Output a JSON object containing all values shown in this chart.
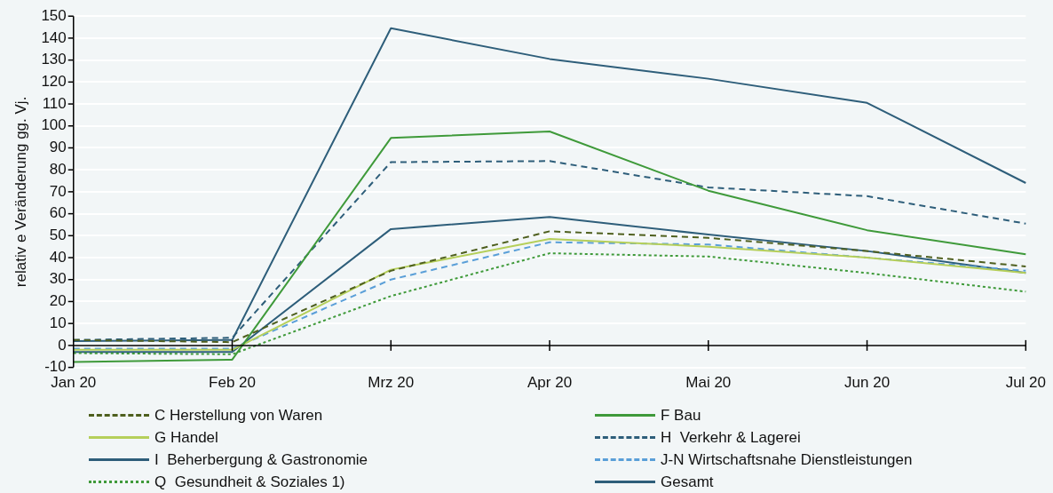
{
  "chart_data": {
    "type": "line",
    "ylabel": "relativ e Veränderung gg. Vj.",
    "categories": [
      "Jan 20",
      "Feb 20",
      "Mrz 20",
      "Apr 20",
      "Mai 20",
      "Jun 20",
      "Jul 20"
    ],
    "ylim": [
      -10,
      150
    ],
    "yticks": [
      -10,
      0,
      10,
      20,
      30,
      40,
      50,
      60,
      70,
      80,
      90,
      100,
      110,
      120,
      130,
      140,
      150
    ],
    "grid": "y",
    "legend": "bottom",
    "marker": "none",
    "series": [
      {
        "name": "C Herstellung von Waren",
        "color": "#4e5f1e",
        "line_style": "dashed",
        "values": [
          2.5,
          1.5,
          34,
          52,
          49,
          43,
          36
        ]
      },
      {
        "name": "F Bau",
        "color": "#3f9a3a",
        "line_style": "solid",
        "values": [
          -7.5,
          -6.5,
          94.5,
          97.5,
          70.5,
          52.5,
          41.5
        ]
      },
      {
        "name": "G Handel",
        "color": "#b5cf5a",
        "line_style": "solid",
        "values": [
          -2,
          -2,
          34.5,
          48.5,
          45,
          40,
          33
        ]
      },
      {
        "name": "H  Verkehr & Lagerei",
        "color": "#2e5e7a",
        "line_style": "dashed",
        "values": [
          2.5,
          3.5,
          83.5,
          84,
          72,
          68,
          55.5
        ]
      },
      {
        "name": "I  Beherbergung & Gastronomie",
        "color": "#2e5e7a",
        "line_style": "solid",
        "values": [
          2,
          2.5,
          144.5,
          130.5,
          121.5,
          110.5,
          74
        ]
      },
      {
        "name": "J-N Wirtschaftsnahe Dienstleistungen",
        "color": "#5a9fd8",
        "line_style": "dashed",
        "values": [
          -1.5,
          -1.5,
          30,
          47,
          46,
          40,
          34
        ]
      },
      {
        "name": "Q  Gesundheit & Soziales 1)",
        "color": "#3f9a3a",
        "line_style": "dotted",
        "values": [
          -3.5,
          -4,
          22.5,
          42,
          40.5,
          33,
          24.5
        ]
      },
      {
        "name": "Gesamt",
        "color": "#2e5e7a",
        "line_style": "solid",
        "values": [
          -3,
          -3,
          53,
          58.5,
          50.5,
          43,
          33
        ]
      }
    ]
  }
}
